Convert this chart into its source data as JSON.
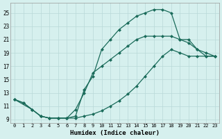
{
  "xlabel": "Humidex (Indice chaleur)",
  "bg_color": "#d6f0ee",
  "grid_color": "#b8d8d8",
  "line_color": "#1a6b5a",
  "xlim": [
    -0.5,
    23.5
  ],
  "ylim": [
    8.5,
    26.5
  ],
  "xticks": [
    0,
    1,
    2,
    3,
    4,
    5,
    6,
    7,
    8,
    9,
    10,
    11,
    12,
    13,
    14,
    15,
    16,
    17,
    18,
    19,
    20,
    21,
    22,
    23
  ],
  "yticks": [
    9,
    11,
    13,
    15,
    17,
    19,
    21,
    23,
    25
  ],
  "line1_x": [
    0,
    1,
    2,
    3,
    4,
    5,
    6,
    7,
    8,
    9,
    10,
    11,
    12,
    13,
    14,
    15,
    16,
    17,
    18,
    19,
    20,
    21,
    22,
    23
  ],
  "line1_y": [
    12,
    11.5,
    10.5,
    9.5,
    9.2,
    9.2,
    9.2,
    9.2,
    9.5,
    9.8,
    10.3,
    11,
    11.8,
    12.8,
    14,
    15.5,
    17,
    18.5,
    19.5,
    19,
    18.5,
    18.5,
    18.5,
    18.5
  ],
  "line2_x": [
    0,
    2,
    3,
    4,
    5,
    6,
    7,
    8,
    9,
    10,
    11,
    12,
    13,
    14,
    15,
    16,
    17,
    18,
    19,
    20,
    21,
    22,
    23
  ],
  "line2_y": [
    12,
    10.5,
    9.5,
    9.2,
    9.2,
    9.2,
    9.5,
    13.5,
    15.5,
    19.5,
    21,
    22.5,
    23.5,
    24.5,
    25,
    25.5,
    25.5,
    25,
    21,
    21,
    19.5,
    18.5,
    18.5
  ],
  "line3_x": [
    0,
    1,
    2,
    3,
    4,
    5,
    6,
    7,
    8,
    9,
    10,
    11,
    12,
    13,
    14,
    15,
    16,
    17,
    18,
    19,
    20,
    21,
    22,
    23
  ],
  "line3_y": [
    12,
    11.5,
    10.5,
    9.5,
    9.2,
    9.2,
    9.2,
    10.5,
    13,
    16,
    17,
    18,
    19,
    20,
    21,
    21.5,
    21.5,
    21.5,
    21.5,
    21,
    20.5,
    19.5,
    19,
    18.5
  ]
}
